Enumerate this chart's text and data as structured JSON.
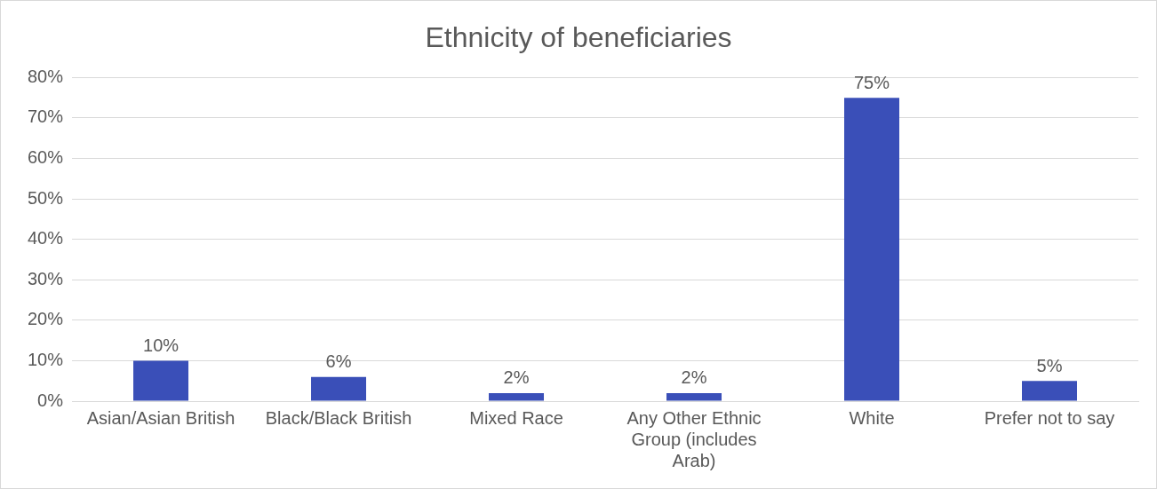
{
  "chart_data": {
    "type": "bar",
    "title": "Ethnicity of beneficiaries",
    "categories": [
      "Asian/Asian British",
      "Black/Black British",
      "Mixed Race",
      "Any Other Ethnic Group (includes Arab)",
      "White",
      "Prefer not to say"
    ],
    "values": [
      10,
      6,
      2,
      2,
      75,
      5
    ],
    "value_labels": [
      "10%",
      "6%",
      "2%",
      "2%",
      "75%",
      "5%"
    ],
    "color": "#3a4fb8",
    "ylim": [
      0,
      80
    ],
    "yticks": [
      {
        "value": 0,
        "label": "0%"
      },
      {
        "value": 10,
        "label": "10%"
      },
      {
        "value": 20,
        "label": "20%"
      },
      {
        "value": 30,
        "label": "30%"
      },
      {
        "value": 40,
        "label": "40%"
      },
      {
        "value": 50,
        "label": "50%"
      },
      {
        "value": 60,
        "label": "60%"
      },
      {
        "value": 70,
        "label": "70%"
      },
      {
        "value": 80,
        "label": "80%"
      }
    ],
    "grid": "y",
    "legend": false
  }
}
